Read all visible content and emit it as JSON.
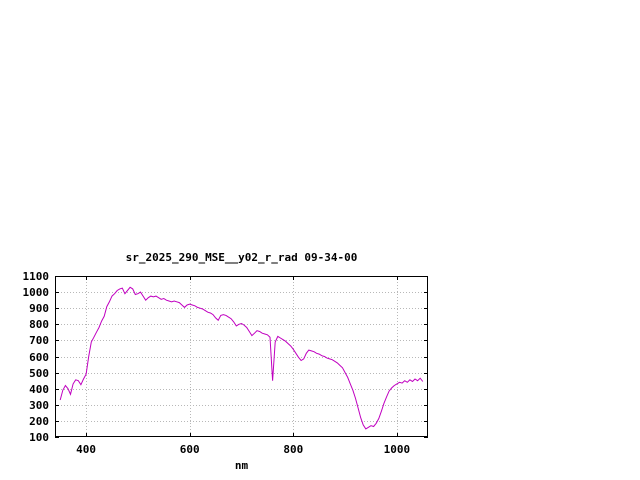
{
  "window": {
    "background": "#ffffff"
  },
  "chart": {
    "title": "sr_2025_290_MSE__y02_r_rad 09-34-00",
    "x_axis_label": "nm",
    "x_tick_labels": [
      "400",
      "600",
      "800",
      "1000"
    ],
    "y_tick_labels": [
      "100",
      "200",
      "300",
      "400",
      "500",
      "600",
      "700",
      "800",
      "900",
      "1000",
      "1100"
    ]
  },
  "chart_data": {
    "type": "line",
    "title": "sr_2025_290_MSE__y02_r_rad 09-34-00",
    "xlabel": "nm",
    "ylabel": "",
    "xlim": [
      340,
      1060
    ],
    "ylim": [
      100,
      1100
    ],
    "x_ticks": [
      400,
      600,
      800,
      1000
    ],
    "y_ticks": [
      100,
      200,
      300,
      400,
      500,
      600,
      700,
      800,
      900,
      1000,
      1100
    ],
    "grid": true,
    "legend": "none",
    "line_color": "#c000c0",
    "frame_color": "#000000",
    "grid_color": "#b8b8b8",
    "x": [
      350,
      355,
      360,
      365,
      370,
      375,
      380,
      385,
      390,
      395,
      400,
      405,
      410,
      415,
      420,
      425,
      430,
      435,
      440,
      445,
      450,
      455,
      460,
      465,
      470,
      475,
      480,
      485,
      490,
      495,
      500,
      505,
      510,
      515,
      520,
      525,
      530,
      535,
      540,
      545,
      550,
      555,
      560,
      565,
      570,
      575,
      580,
      585,
      590,
      595,
      600,
      605,
      610,
      615,
      620,
      625,
      630,
      635,
      640,
      645,
      650,
      655,
      660,
      665,
      670,
      675,
      680,
      685,
      690,
      695,
      700,
      705,
      710,
      715,
      720,
      725,
      730,
      735,
      740,
      745,
      750,
      755,
      760,
      765,
      770,
      775,
      780,
      785,
      790,
      795,
      800,
      805,
      810,
      815,
      820,
      825,
      830,
      835,
      840,
      845,
      850,
      855,
      860,
      865,
      870,
      875,
      880,
      885,
      890,
      895,
      900,
      905,
      910,
      915,
      920,
      925,
      930,
      935,
      940,
      945,
      950,
      955,
      960,
      965,
      970,
      975,
      980,
      985,
      990,
      995,
      1000,
      1005,
      1010,
      1015,
      1020,
      1025,
      1030,
      1035,
      1040,
      1045,
      1050
    ],
    "y": [
      330,
      390,
      420,
      400,
      365,
      430,
      455,
      450,
      425,
      460,
      490,
      600,
      690,
      720,
      750,
      780,
      820,
      850,
      910,
      940,
      975,
      990,
      1010,
      1020,
      1025,
      990,
      1010,
      1030,
      1020,
      985,
      990,
      1000,
      975,
      950,
      965,
      975,
      970,
      975,
      965,
      955,
      960,
      950,
      945,
      940,
      945,
      940,
      935,
      920,
      905,
      920,
      925,
      920,
      915,
      905,
      900,
      895,
      885,
      875,
      870,
      860,
      840,
      825,
      855,
      860,
      855,
      845,
      835,
      815,
      790,
      800,
      805,
      795,
      780,
      755,
      730,
      745,
      760,
      755,
      745,
      740,
      735,
      720,
      450,
      690,
      725,
      715,
      705,
      695,
      680,
      665,
      645,
      620,
      595,
      575,
      585,
      620,
      640,
      635,
      630,
      620,
      615,
      605,
      600,
      590,
      585,
      580,
      570,
      560,
      545,
      530,
      500,
      470,
      430,
      390,
      340,
      280,
      220,
      175,
      150,
      160,
      170,
      165,
      185,
      215,
      260,
      310,
      350,
      385,
      405,
      420,
      430,
      440,
      435,
      450,
      440,
      455,
      445,
      460,
      450,
      465,
      445
    ]
  }
}
